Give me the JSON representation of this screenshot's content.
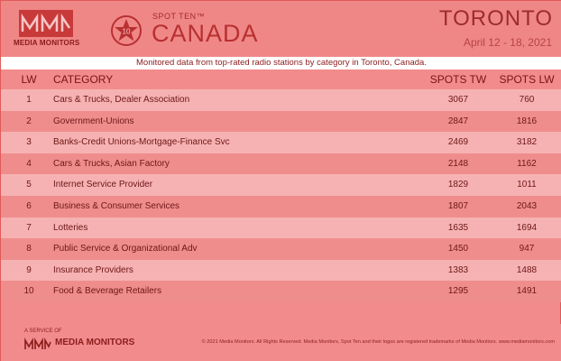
{
  "header": {
    "logo_text": "MEDIA MONITORS",
    "badge_number": "10",
    "spot_ten": "SPOT TEN™",
    "country": "CANADA",
    "city": "TORONTO",
    "dates": "April 12 - 18, 2021"
  },
  "subtitle": "Monitored data from top-rated radio stations by category in Toronto, Canada.",
  "table": {
    "headers": {
      "lw": "LW",
      "category": "CATEGORY",
      "spots_tw": "SPOTS TW",
      "spots_lw": "SPOTS LW"
    },
    "rows": [
      {
        "lw": "1",
        "category": "Cars & Trucks, Dealer Association",
        "spots_tw": "3067",
        "spots_lw": "760"
      },
      {
        "lw": "2",
        "category": "Government-Unions",
        "spots_tw": "2847",
        "spots_lw": "1816"
      },
      {
        "lw": "3",
        "category": "Banks-Credit Unions-Mortgage-Finance Svc",
        "spots_tw": "2469",
        "spots_lw": "3182"
      },
      {
        "lw": "4",
        "category": "Cars & Trucks, Asian Factory",
        "spots_tw": "2148",
        "spots_lw": "1162"
      },
      {
        "lw": "5",
        "category": "Internet Service Provider",
        "spots_tw": "1829",
        "spots_lw": "1011"
      },
      {
        "lw": "6",
        "category": "Business & Consumer Services",
        "spots_tw": "1807",
        "spots_lw": "2043"
      },
      {
        "lw": "7",
        "category": "Lotteries",
        "spots_tw": "1635",
        "spots_lw": "1694"
      },
      {
        "lw": "8",
        "category": "Public Service & Organizational Adv",
        "spots_tw": "1450",
        "spots_lw": "947"
      },
      {
        "lw": "9",
        "category": "Insurance Providers",
        "spots_tw": "1383",
        "spots_lw": "1488"
      },
      {
        "lw": "10",
        "category": "Food & Beverage Retailers",
        "spots_tw": "1295",
        "spots_lw": "1491"
      }
    ]
  },
  "footer": {
    "service_of": "A SERVICE OF",
    "logo_text": "MEDIA MONITORS",
    "copyright": "© 2021 Media Monitors. All Rights Reserved. Media Monitors, Spot Ten and their logos are registered trademarks of Media Monitors. www.mediamonitors.com"
  }
}
